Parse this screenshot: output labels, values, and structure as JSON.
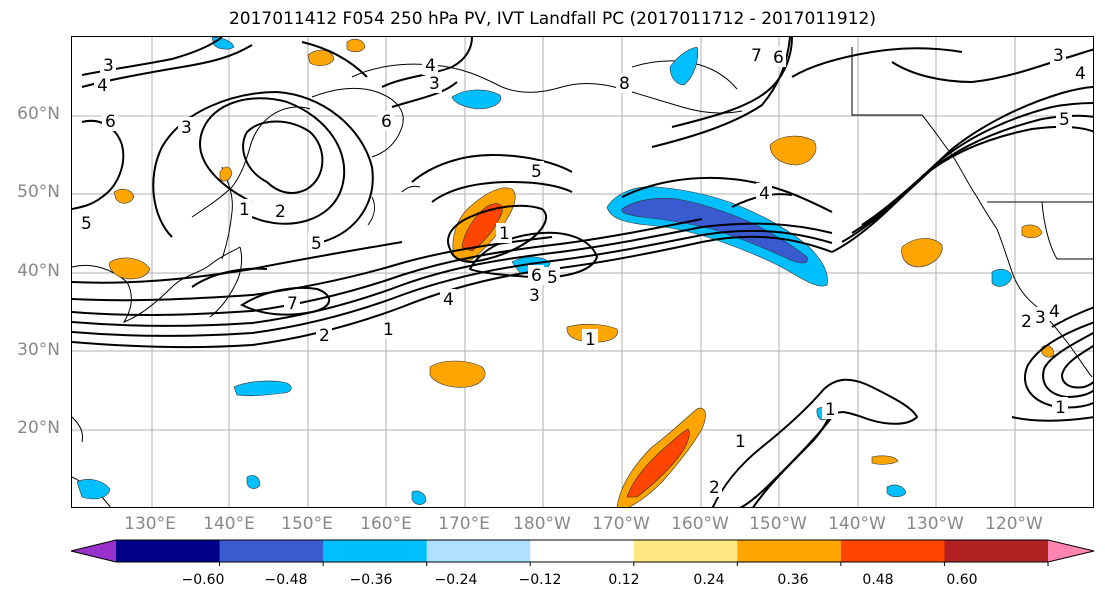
{
  "title": "2017011412 F054 250 hPa PV, IVT Landfall PC (2017011712 - 2017011912)",
  "lat_labels": [
    "60°N",
    "50°N",
    "40°N",
    "30°N",
    "20°N"
  ],
  "lon_labels": [
    "130°E",
    "140°E",
    "150°E",
    "160°E",
    "170°E",
    "180°W",
    "170°W",
    "160°W",
    "150°W",
    "140°W",
    "130°W",
    "120°W"
  ],
  "colorbar": {
    "colors": [
      "#9932cc",
      "#00008b",
      "#3a5bd0",
      "#00bfff",
      "#b0e0ff",
      "#ffffff",
      "#ffe880",
      "#ffa500",
      "#ff4500",
      "#b22222",
      "#ff85b0"
    ],
    "tick_labels": [
      "−0.60",
      "−0.48",
      "−0.36",
      "−0.24",
      "−0.12",
      "0.12",
      "0.24",
      "0.36",
      "0.48",
      "0.60"
    ]
  },
  "contour_labels": [
    "3",
    "4",
    "6",
    "5",
    "3",
    "2",
    "1",
    "5",
    "4",
    "6",
    "3",
    "7",
    "1",
    "2",
    "1",
    "4",
    "3",
    "5",
    "6",
    "1",
    "5",
    "4",
    "7",
    "8",
    "6",
    "3",
    "4",
    "5",
    "1",
    "2",
    "3",
    "4",
    "1",
    "1",
    "2"
  ]
}
